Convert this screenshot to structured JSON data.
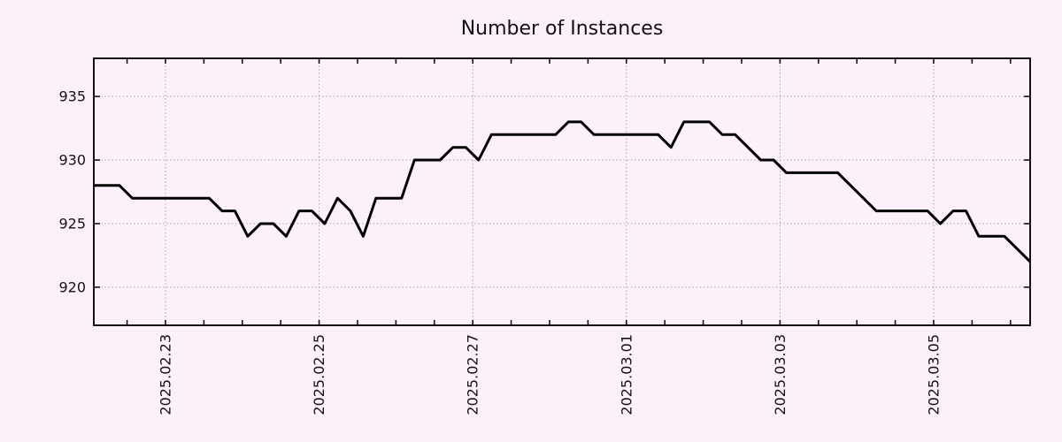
{
  "title": "Number of Instances",
  "colors": {
    "background": "#fcf0fb",
    "axis": "#1a0d1a",
    "grid": "#aaa2aa",
    "line": "#000000",
    "text": "#1a0d1a"
  },
  "chart_data": {
    "type": "line",
    "title": "Number of Instances",
    "xlabel": "",
    "ylabel": "",
    "grid": true,
    "legend": "none",
    "y_ticks": [
      920,
      925,
      930,
      935
    ],
    "ylim": [
      917,
      938
    ],
    "x_tick_labels": [
      "2025.02.23",
      "2025.02.25",
      "2025.02.27",
      "2025.03.01",
      "2025.03.03",
      "2025.03.05"
    ],
    "x_tick_day_offsets": [
      0,
      2,
      4,
      6,
      8,
      10
    ],
    "xlim_day_offsets": [
      -0.933,
      11.256
    ],
    "minor_tick_every_days": 0.5,
    "points_per_day": 6,
    "series": [
      {
        "name": "instances",
        "values": [
          928,
          928,
          928,
          927,
          927,
          927,
          927,
          927,
          927,
          927,
          926,
          926,
          924,
          925,
          925,
          924,
          926,
          926,
          925,
          927,
          926,
          924,
          927,
          927,
          927,
          930,
          930,
          930,
          931,
          931,
          930,
          932,
          932,
          932,
          932,
          932,
          932,
          933,
          933,
          932,
          932,
          932,
          932,
          932,
          932,
          931,
          933,
          933,
          933,
          932,
          932,
          931,
          930,
          930,
          929,
          929,
          929,
          929,
          929,
          928,
          927,
          926,
          926,
          926,
          926,
          926,
          925,
          926,
          926,
          924,
          924,
          924,
          923,
          922
        ]
      }
    ]
  }
}
